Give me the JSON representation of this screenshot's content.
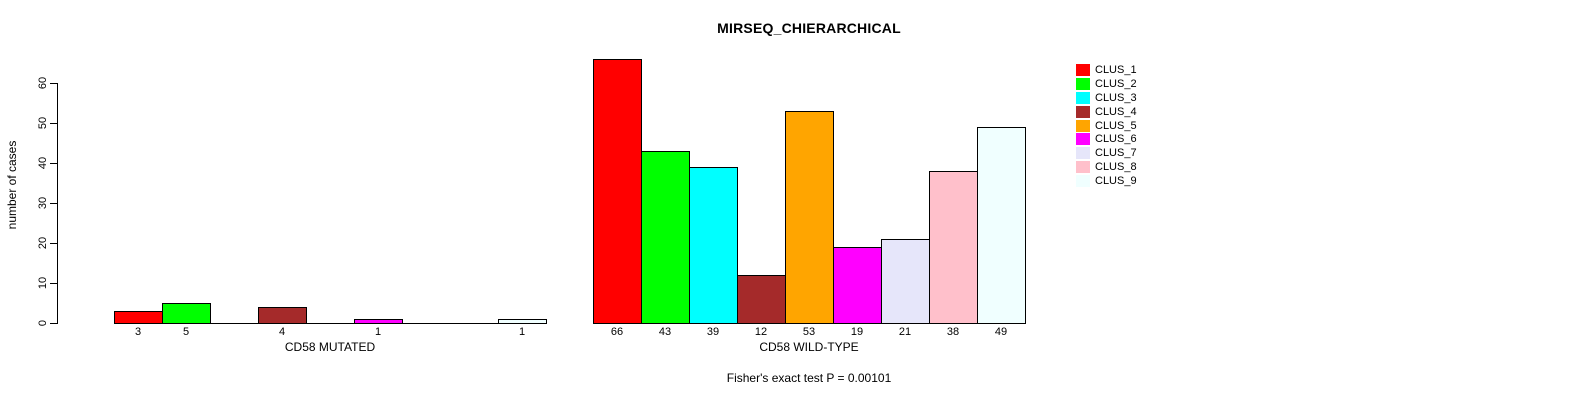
{
  "figure": {
    "title": "MIRSEQ_CHIERARCHICAL",
    "annotation": "Fisher's exact test P = 0.00101"
  },
  "chart_data": {
    "type": "bar",
    "title": "MIRSEQ_CHIERARCHICAL",
    "ylabel": "number of cases",
    "ylim": [
      0,
      60
    ],
    "yticks": [
      0,
      10,
      20,
      30,
      40,
      50,
      60
    ],
    "grid": false,
    "legend_position": "right-outside",
    "bar_border_color": "#000000",
    "clusters": [
      {
        "name": "CLUS_1",
        "color": "#FF0000"
      },
      {
        "name": "CLUS_2",
        "color": "#00FF00"
      },
      {
        "name": "CLUS_3",
        "color": "#00FFFF"
      },
      {
        "name": "CLUS_4",
        "color": "#A52A2A"
      },
      {
        "name": "CLUS_5",
        "color": "#FFA500"
      },
      {
        "name": "CLUS_6",
        "color": "#FF00FF"
      },
      {
        "name": "CLUS_7",
        "color": "#E6E6FA"
      },
      {
        "name": "CLUS_8",
        "color": "#FFC0CB"
      },
      {
        "name": "CLUS_9",
        "color": "#F0FFFF"
      }
    ],
    "groups": [
      {
        "label": "CD58 MUTATED",
        "values": [
          3,
          5,
          0,
          4,
          0,
          1,
          0,
          0,
          1
        ]
      },
      {
        "label": "CD58 WILD-TYPE",
        "values": [
          66,
          43,
          39,
          12,
          53,
          19,
          21,
          38,
          49
        ]
      }
    ],
    "annotation": "Fisher's exact test P = 0.00101"
  }
}
